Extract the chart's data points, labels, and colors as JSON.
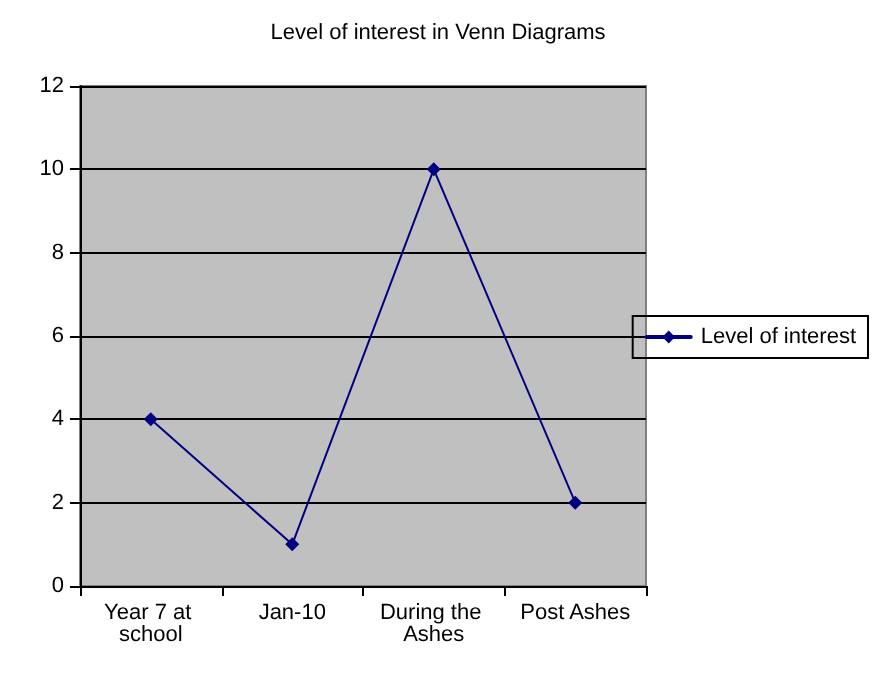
{
  "chart_data": {
    "type": "line",
    "title": "Level of interest in Venn Diagrams",
    "categories": [
      "Year 7 at school",
      "Jan-10",
      "During the Ashes",
      "Post Ashes"
    ],
    "series": [
      {
        "name": "Level of interest",
        "color": "#000080",
        "values": [
          4,
          1,
          10,
          2
        ]
      }
    ],
    "ylim": [
      0,
      12
    ],
    "yticks": [
      0,
      2,
      4,
      6,
      8,
      10,
      12
    ],
    "grid": "y",
    "legend": "right",
    "marker": "diamond",
    "line_style": "solid"
  }
}
